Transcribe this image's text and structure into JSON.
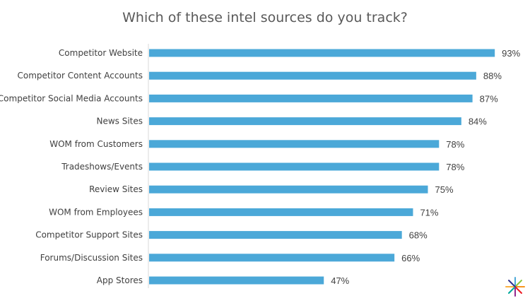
{
  "chart_data": {
    "type": "bar",
    "orientation": "horizontal",
    "title": "Which of these intel sources do you track?",
    "xlabel": "",
    "ylabel": "",
    "categories": [
      "Competitor Website",
      "Competitor Content Accounts",
      "Competitor Social Media Accounts",
      "News Sites",
      "WOM from Customers",
      "Tradeshows/Events",
      "Review Sites",
      "WOM from Employees",
      "Competitor Support Sites",
      "Forums/Discussion Sites",
      "App Stores"
    ],
    "values": [
      93,
      88,
      87,
      84,
      78,
      78,
      75,
      71,
      68,
      66,
      47
    ],
    "value_labels": [
      "93%",
      "88%",
      "87%",
      "84%",
      "78%",
      "78%",
      "75%",
      "71%",
      "68%",
      "66%",
      "47%"
    ],
    "xlim": [
      0,
      100
    ],
    "grid": false,
    "legend": "none",
    "colors": {
      "bar": "#4BA8D8",
      "axis": "#D9D9D9",
      "title": "#595959",
      "label": "#404040"
    }
  },
  "branding": {
    "logo_icon": "crayon-burst-icon"
  }
}
